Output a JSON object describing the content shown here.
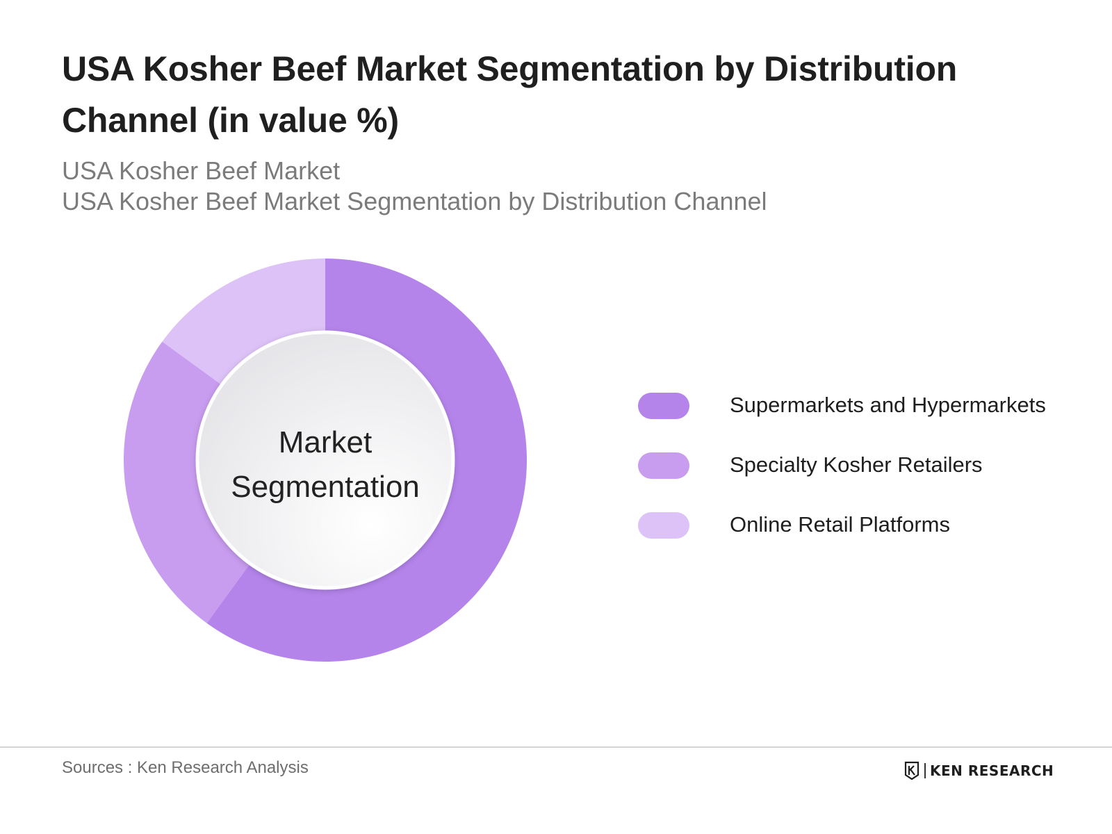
{
  "title": "USA Kosher Beef Market Segmentation by Distribution Channel (in value %)",
  "subtitle_lines": [
    "USA Kosher Beef Market",
    "USA Kosher Beef Market Segmentation by Distribution Channel"
  ],
  "center_label": {
    "line1": "Market",
    "line2": "Segmentation"
  },
  "chart_data": {
    "type": "pie",
    "donut": true,
    "start_angle_deg": 0,
    "direction": "clockwise",
    "categories": [
      "Supermarkets and Hypermarkets",
      "Specialty Kosher Retailers",
      "Online Retail Platforms"
    ],
    "values": [
      60,
      25,
      15
    ],
    "colors": [
      "#b484eb",
      "#c89cef",
      "#dcc2f6"
    ],
    "legend_position": "right"
  },
  "footer": {
    "source": "Sources : Ken Research Analysis",
    "logo_text": "KEN RESEARCH"
  }
}
